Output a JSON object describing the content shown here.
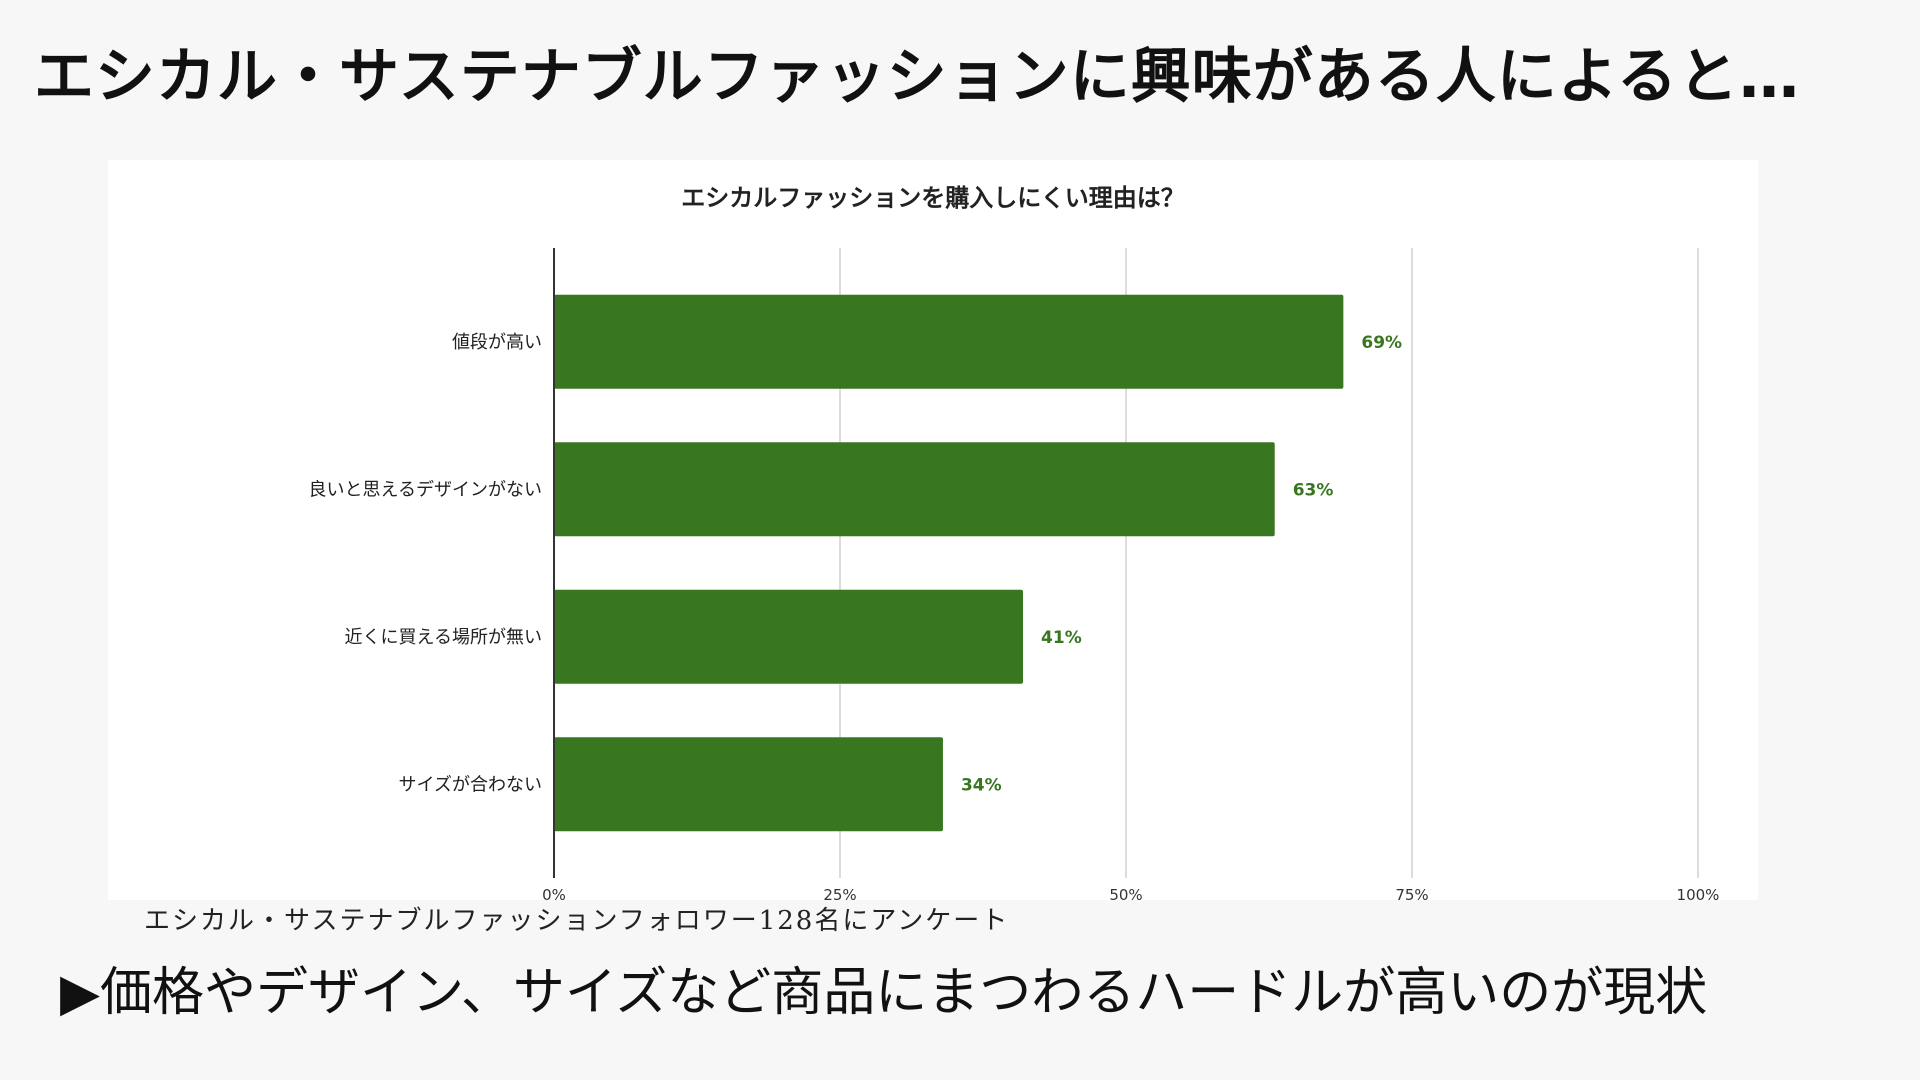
{
  "slide": {
    "title": "エシカル・サステナブルファッションに興味がある人によると…",
    "source_note": "エシカル・サステナブルファッションフォロワー128名にアンケート",
    "conclusion": "▶価格やデザイン、サイズなど商品にまつわるハードルが高いのが現状"
  },
  "colors": {
    "bar": "#387720",
    "value_label": "#387720",
    "grid": "#d0d0d0",
    "axis": "#333333"
  },
  "chart_data": {
    "type": "bar",
    "orientation": "horizontal",
    "title": "エシカルファッションを購入しにくい理由は？",
    "categories": [
      "値段が高い",
      "良いと思えるデザインがない",
      "近くに買える場所が無い",
      "サイズが合わない"
    ],
    "values": [
      69,
      63,
      41,
      34
    ],
    "value_labels": [
      "69%",
      "63%",
      "41%",
      "34%"
    ],
    "xlim": [
      0,
      100
    ],
    "xticks": [
      0,
      25,
      50,
      75,
      100
    ],
    "xtick_labels": [
      "0%",
      "25%",
      "50%",
      "75%",
      "100%"
    ],
    "grid": true,
    "legend": "none"
  }
}
